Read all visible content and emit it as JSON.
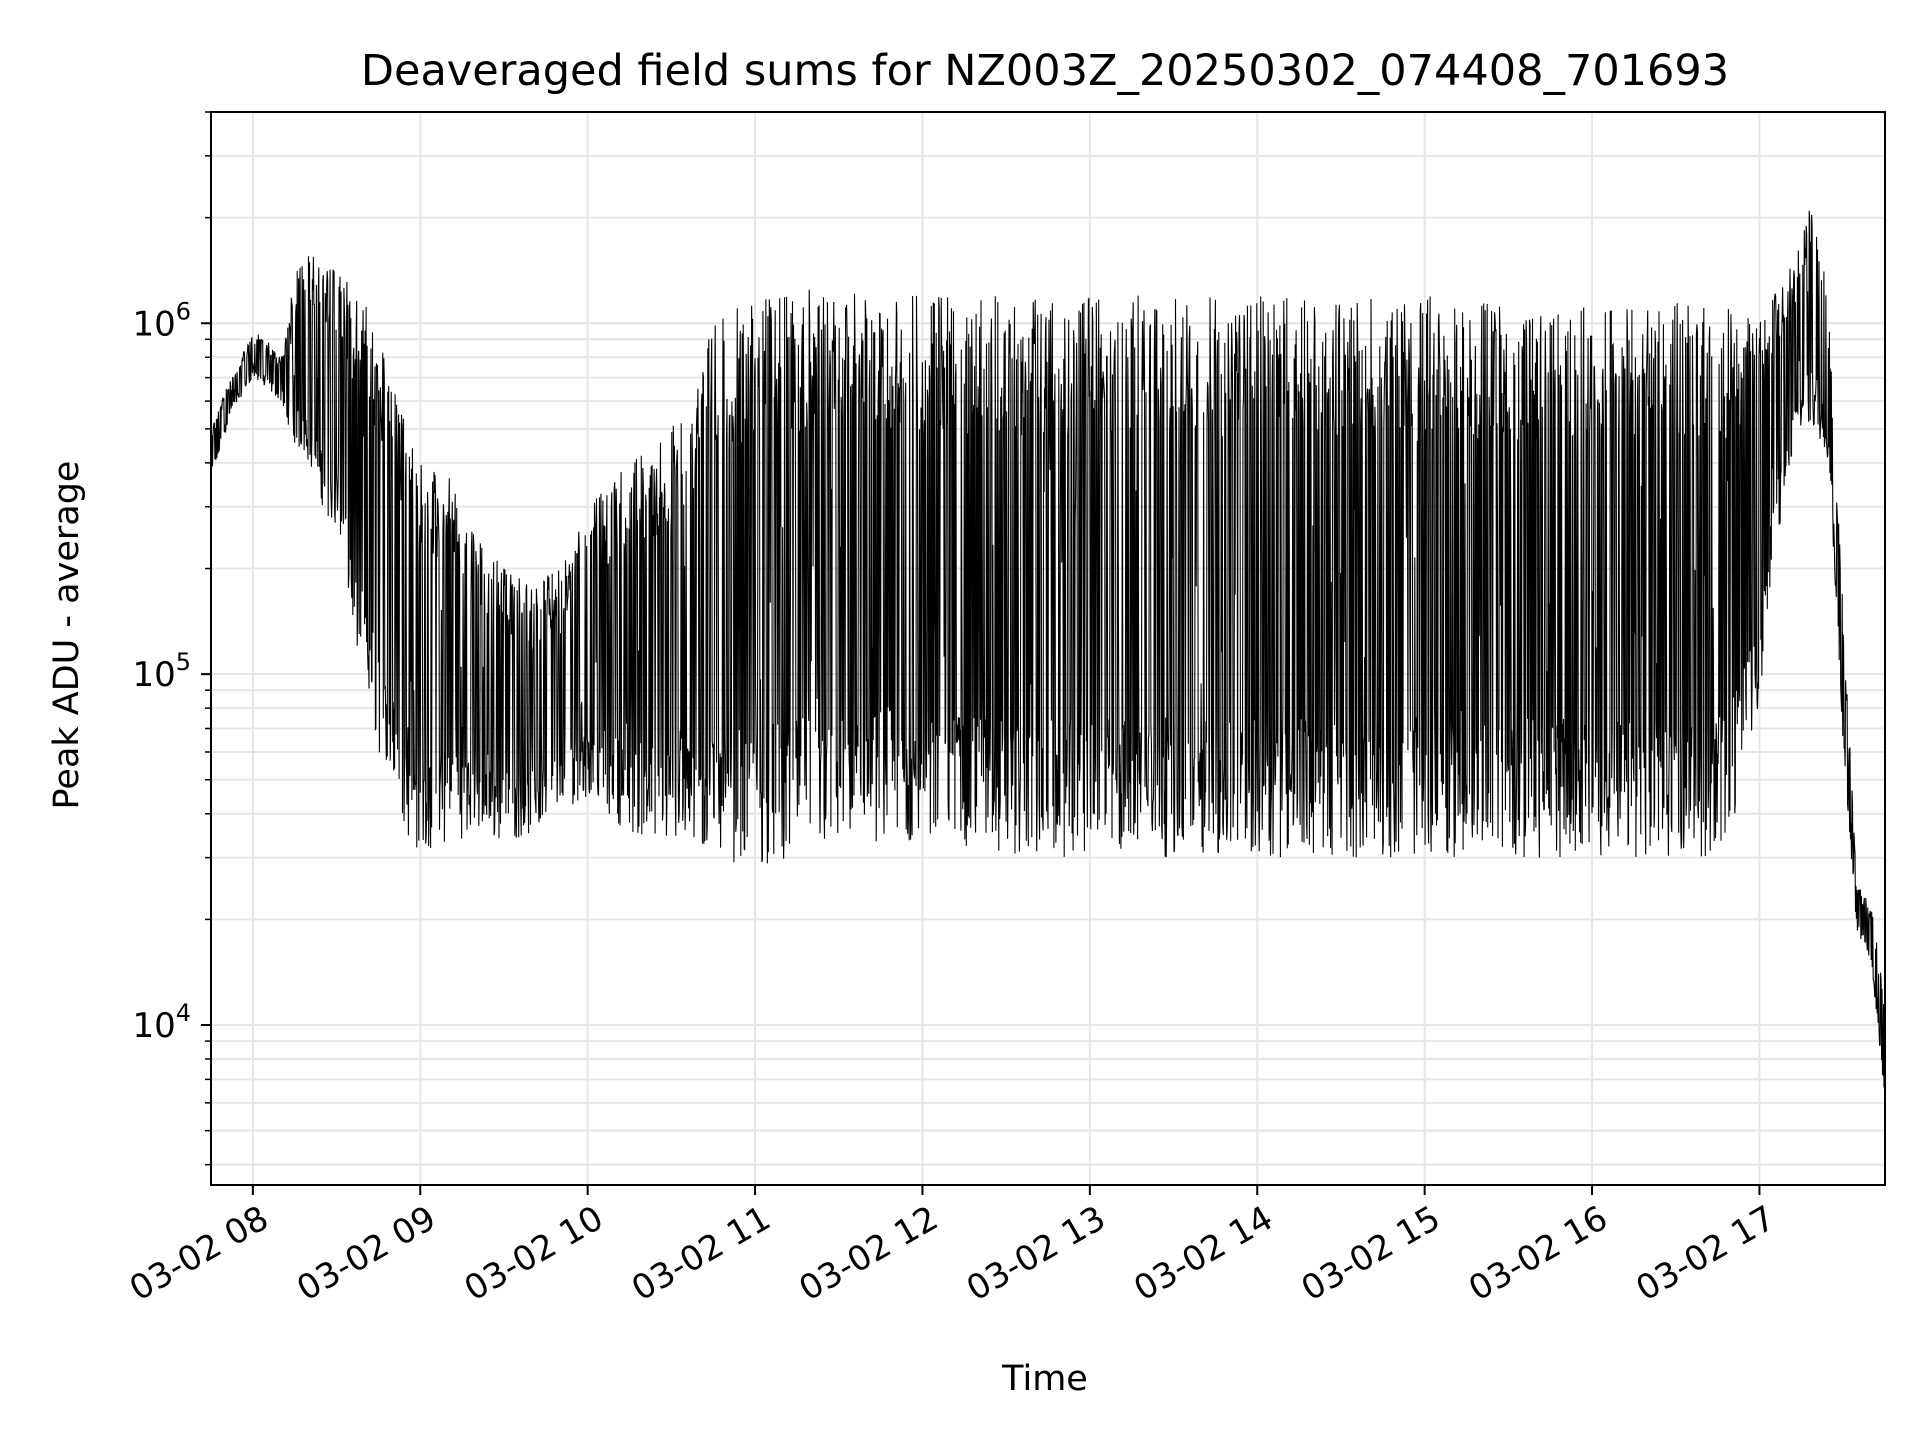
{
  "chart_data": {
    "type": "line",
    "title": "Deaveraged field sums for NZ003Z_20250302_074408_701693",
    "xlabel": "Time",
    "ylabel": "Peak ADU - average",
    "yscale": "log",
    "xlim": [
      "03-02 07:45",
      "03-02 17:45"
    ],
    "ylim": [
      3500,
      4000000
    ],
    "grid": true,
    "line_color": "#000000",
    "grid_color": "#e6e6e6",
    "x_ticks": [
      "03-02 08",
      "03-02 09",
      "03-02 10",
      "03-02 11",
      "03-02 12",
      "03-02 13",
      "03-02 14",
      "03-02 15",
      "03-02 16",
      "03-02 17"
    ],
    "y_ticks": [
      {
        "base": "10",
        "exp": "4",
        "value": 10000
      },
      {
        "base": "10",
        "exp": "5",
        "value": 100000
      },
      {
        "base": "10",
        "exp": "6",
        "value": 1000000
      }
    ],
    "series": [
      {
        "x": [
          "03-02 07:45",
          "03-02 07:52",
          "03-02 08:00",
          "03-02 08:05",
          "03-02 08:10",
          "03-02 08:15",
          "03-02 08:20",
          "03-02 08:25",
          "03-02 08:30",
          "03-02 08:35",
          "03-02 08:40",
          "03-02 08:45",
          "03-02 08:50",
          "03-02 08:55",
          "03-02 09:00",
          "03-02 09:10",
          "03-02 09:20",
          "03-02 09:30",
          "03-02 09:40",
          "03-02 09:50",
          "03-02 10:00",
          "03-02 10:15",
          "03-02 10:30",
          "03-02 10:45",
          "03-02 11:00",
          "03-02 11:15",
          "03-02 11:30",
          "03-02 11:45",
          "03-02 12:00",
          "03-02 12:15",
          "03-02 12:30",
          "03-02 12:45",
          "03-02 13:00",
          "03-02 13:30",
          "03-02 14:00",
          "03-02 14:30",
          "03-02 15:00",
          "03-02 15:30",
          "03-02 16:00",
          "03-02 16:30",
          "03-02 16:45",
          "03-02 16:52",
          "03-02 17:00",
          "03-02 17:05",
          "03-02 17:10",
          "03-02 17:15",
          "03-02 17:20",
          "03-02 17:25",
          "03-02 17:30",
          "03-02 17:35",
          "03-02 17:40",
          "03-02 17:45"
        ],
        "y_low": [
          350000,
          550000,
          700000,
          650000,
          600000,
          450000,
          400000,
          300000,
          250000,
          150000,
          90000,
          60000,
          45000,
          35000,
          30000,
          33000,
          35000,
          33000,
          35000,
          40000,
          45000,
          35000,
          32000,
          30000,
          28000,
          30000,
          32000,
          33000,
          33000,
          32000,
          30000,
          30000,
          30000,
          30000,
          30000,
          30000,
          30000,
          30000,
          30000,
          30000,
          30000,
          40000,
          80000,
          200000,
          350000,
          500000,
          500000,
          400000,
          60000,
          18000,
          15000,
          6000
        ],
        "y_high": [
          500000,
          700000,
          950000,
          900000,
          800000,
          1400000,
          1600000,
          1500000,
          1400000,
          1300000,
          1200000,
          900000,
          700000,
          500000,
          400000,
          380000,
          250000,
          200000,
          180000,
          200000,
          300000,
          400000,
          500000,
          1000000,
          1200000,
          1250000,
          1250000,
          1200000,
          1200000,
          1200000,
          1200000,
          1200000,
          1200000,
          1200000,
          1200000,
          1200000,
          1200000,
          1150000,
          1150000,
          1150000,
          1150000,
          1100000,
          1000000,
          1200000,
          1400000,
          1800000,
          2500000,
          1000000,
          150000,
          25000,
          22000,
          12000
        ]
      }
    ]
  }
}
